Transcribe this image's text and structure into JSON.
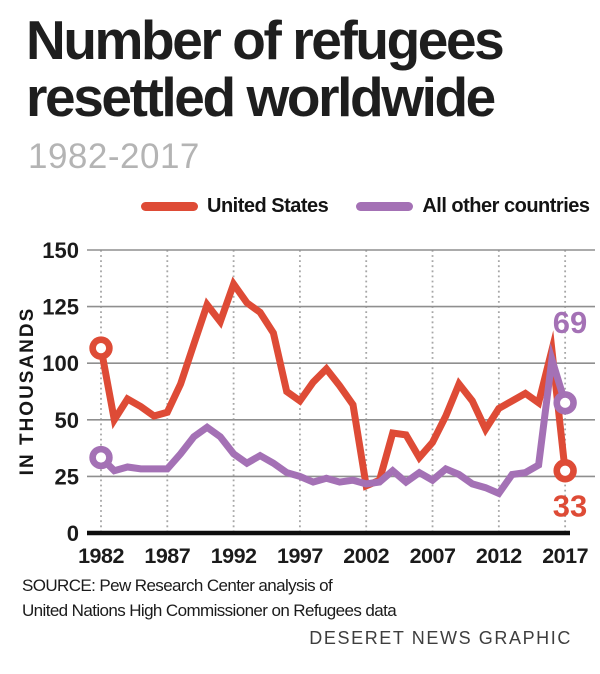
{
  "title": {
    "line1": "Number of refugees",
    "line2": "resettled worldwide"
  },
  "subtitle": "1982-2017",
  "legend": [
    {
      "label": "United States",
      "color": "#DE4B36"
    },
    {
      "label": "All other countries",
      "color": "#A471B5"
    }
  ],
  "source": {
    "line1": "SOURCE: Pew Research Center analysis of",
    "line2": "United Nations High Commissioner on Refugees data"
  },
  "credit": "DESERET NEWS GRAPHIC",
  "chart_data": {
    "type": "line",
    "title": "Number of refugees resettled worldwide",
    "subtitle": "1982-2017",
    "ylabel": "IN THOUSANDS",
    "ylim": [
      0,
      150
    ],
    "grid": true,
    "legend_position": "top",
    "y_tick_labels": [
      "0",
      "25",
      "50",
      "100",
      "125",
      "150"
    ],
    "y_axis_note": "six equally spaced gridlines labeled as in original graphic; data plotted linearly 0-150",
    "x_tick_labels": [
      "1982",
      "1987",
      "1992",
      "1997",
      "2002",
      "2007",
      "2012",
      "2017"
    ],
    "years": [
      1982,
      1983,
      1984,
      1985,
      1986,
      1987,
      1988,
      1989,
      1990,
      1991,
      1992,
      1993,
      1994,
      1995,
      1996,
      1997,
      1998,
      1999,
      2000,
      2001,
      2002,
      2003,
      2004,
      2005,
      2006,
      2007,
      2008,
      2009,
      2010,
      2011,
      2012,
      2013,
      2014,
      2015,
      2016,
      2017
    ],
    "series": [
      {
        "name": "United States",
        "color": "#DE4B36",
        "values": [
          98,
          60,
          71,
          67,
          62,
          64,
          79,
          100,
          121,
          112,
          132,
          122,
          117,
          106,
          75,
          70,
          80,
          87,
          78,
          68,
          25,
          28,
          53,
          52,
          40,
          48,
          62,
          79,
          70,
          55,
          66,
          70,
          74,
          69,
          97,
          33
        ]
      },
      {
        "name": "All other countries",
        "color": "#A471B5",
        "values": [
          40,
          33,
          35,
          34,
          34,
          34,
          42,
          51,
          56,
          51,
          42,
          37,
          41,
          37,
          32,
          30,
          27,
          29,
          27,
          28,
          26,
          27,
          33,
          27,
          32,
          28,
          34,
          31,
          26,
          24,
          21,
          31,
          32,
          36,
          92,
          69
        ]
      }
    ],
    "end_labels": [
      {
        "series": "All other countries",
        "year": 2017,
        "text": "69",
        "placement": "above"
      },
      {
        "series": "United States",
        "year": 2017,
        "text": "33",
        "placement": "below"
      }
    ]
  }
}
